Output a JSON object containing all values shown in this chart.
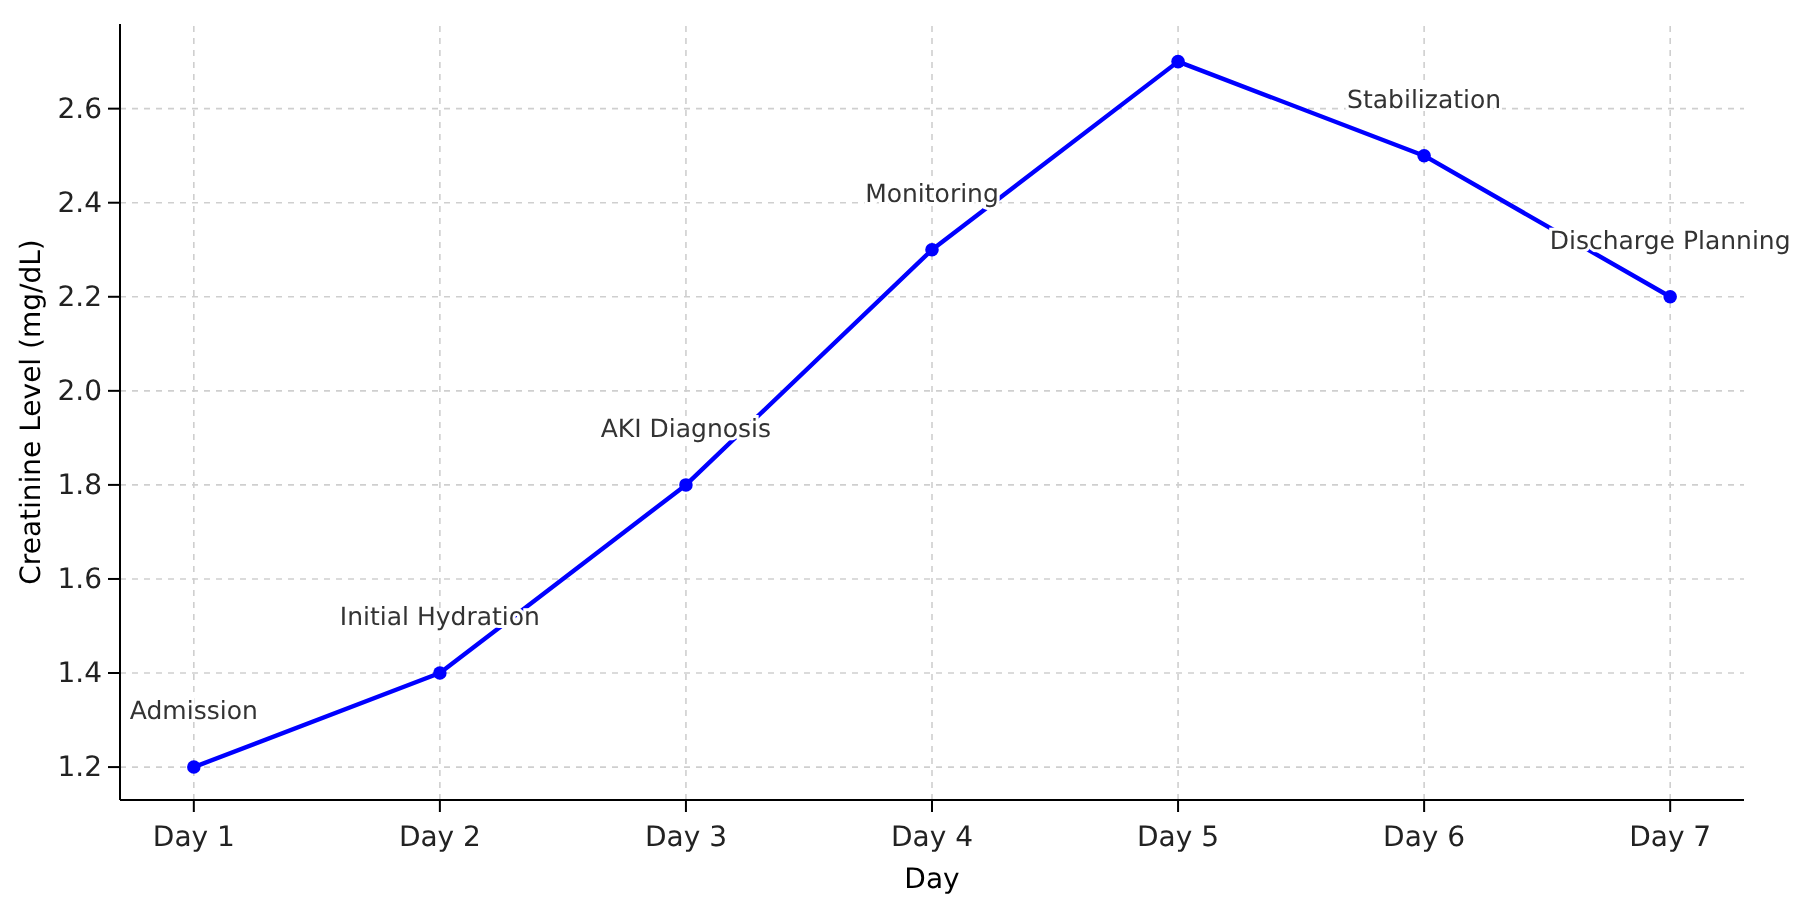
{
  "chart_data": {
    "type": "line",
    "xlabel": "Day",
    "ylabel": "Creatinine Level (mg/dL)",
    "categories": [
      "Day 1",
      "Day 2",
      "Day 3",
      "Day 4",
      "Day 5",
      "Day 6",
      "Day 7"
    ],
    "series": [
      {
        "color": "#0000ff",
        "values": [
          1.2,
          1.4,
          1.8,
          2.3,
          2.7,
          2.5,
          2.2
        ]
      }
    ],
    "ylim": [
      1.13,
      2.78
    ],
    "yticks": [
      1.2,
      1.4,
      1.6,
      1.8,
      {
        "value": 2,
        "label": "2.0"
      },
      2.2,
      2.4,
      2.6
    ],
    "grid": true,
    "marker": "circle",
    "line_style": "solid",
    "annotations": [
      {
        "text": "Admission",
        "x": "Day 1",
        "y": 1.2
      },
      {
        "text": "Initial Hydration",
        "x": "Day 2",
        "y": 1.4
      },
      {
        "text": "AKI Diagnosis",
        "x": "Day 3",
        "y": 1.8
      },
      {
        "text": "Monitoring",
        "x": "Day 4",
        "y": 2.3
      },
      {
        "text": "Stabilization",
        "x": "Day 6",
        "y": 2.5
      },
      {
        "text": "Discharge Planning",
        "x": "Day 7",
        "y": 2.2
      }
    ]
  }
}
